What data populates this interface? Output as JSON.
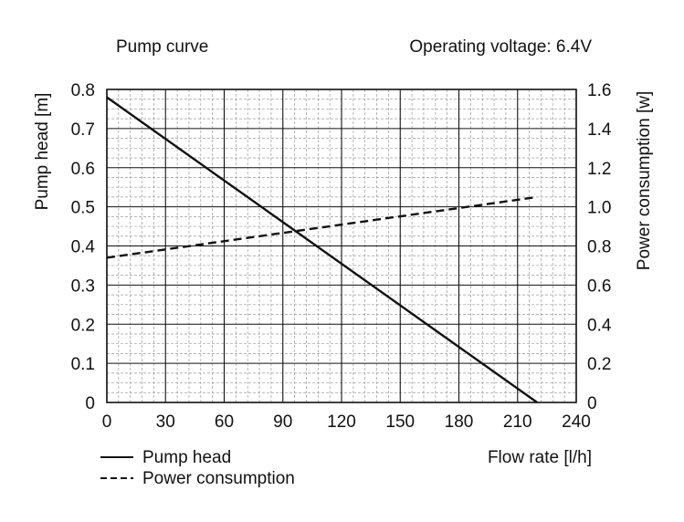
{
  "chart_data": {
    "type": "line",
    "title": "Pump curve",
    "subtitle": "Operating voltage: 6.4V",
    "xlabel": "Flow rate [l/h]",
    "ylabel": "Pump head [m]",
    "y2label": "Power consumption [w]",
    "xlim": [
      0,
      240
    ],
    "ylim": [
      0,
      0.8
    ],
    "y2lim": [
      0,
      1.6
    ],
    "x_ticks": [
      "0",
      "30",
      "60",
      "90",
      "120",
      "150",
      "180",
      "210",
      "240"
    ],
    "y_ticks": [
      "0",
      "0.1",
      "0.2",
      "0.3",
      "0.4",
      "0.5",
      "0.6",
      "0.7",
      "0.8"
    ],
    "y2_ticks": [
      "0",
      "0.2",
      "0.4",
      "0.6",
      "0.8",
      "1.0",
      "1.2",
      "1.4",
      "1.6"
    ],
    "grid": true,
    "legend_position": "bottom-left",
    "series": [
      {
        "name": "Pump head",
        "axis": "left",
        "style": "solid",
        "color": "#111111",
        "x": [
          0,
          220
        ],
        "y": [
          0.78,
          0.0
        ]
      },
      {
        "name": "Power consumption",
        "axis": "right",
        "style": "dashed",
        "color": "#111111",
        "x": [
          0,
          220
        ],
        "y": [
          0.74,
          1.05
        ]
      }
    ]
  }
}
